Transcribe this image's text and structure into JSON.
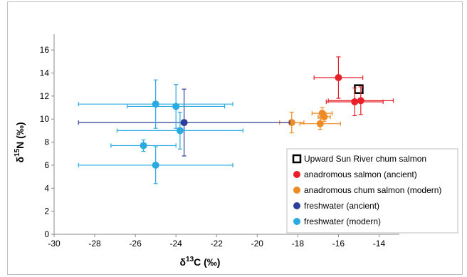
{
  "chart_data": {
    "type": "scatter",
    "xlabel": "δ13C (‰)",
    "ylabel": "δ15N (‰)",
    "xlim": [
      -30,
      -13
    ],
    "ylim": [
      0,
      17
    ],
    "xticks": [
      -30,
      -28,
      -26,
      -24,
      -22,
      -20,
      -18,
      -16,
      -14
    ],
    "yticks": [
      0,
      2,
      4,
      6,
      8,
      10,
      12,
      14,
      16
    ],
    "grid": false,
    "legend_position": "lower-right",
    "series": [
      {
        "name": "Upward Sun River chum salmon",
        "color": "#000000",
        "marker": "open-square",
        "points": [
          {
            "x": -15.0,
            "y": 12.6
          }
        ]
      },
      {
        "name": "anadromous salmon (ancient)",
        "color": "#e8202a",
        "marker": "circle",
        "points": [
          {
            "x": -16.0,
            "y": 13.6,
            "xerr": 1.2,
            "yerr": 1.8
          },
          {
            "x": -15.2,
            "y": 11.5,
            "xerr": 1.4,
            "yerr": 1.2
          },
          {
            "x": -14.9,
            "y": 11.6,
            "xerr": 1.6,
            "yerr": 1.2
          }
        ]
      },
      {
        "name": "anadromous chum salmon (modern)",
        "color": "#f08a24",
        "marker": "circle",
        "points": [
          {
            "x": -18.3,
            "y": 9.7,
            "xerr": 0.6,
            "yerr": 0.9
          },
          {
            "x": -16.8,
            "y": 10.5,
            "xerr": 0.5,
            "yerr": 0.5
          },
          {
            "x": -16.7,
            "y": 10.2,
            "xerr": 0.3,
            "yerr": 0.4
          },
          {
            "x": -16.9,
            "y": 9.6,
            "xerr": 1.0,
            "yerr": 0.5
          }
        ]
      },
      {
        "name": "freshwater (ancient)",
        "color": "#2e3f99",
        "marker": "circle",
        "points": [
          {
            "x": -23.6,
            "y": 9.7,
            "xerr": 5.2,
            "yerr": 2.9
          }
        ]
      },
      {
        "name": "freshwater (modern)",
        "color": "#29abe2",
        "marker": "circle",
        "points": [
          {
            "x": -25.0,
            "y": 11.3,
            "xerr": 3.8,
            "yerr": 2.1
          },
          {
            "x": -24.0,
            "y": 11.1,
            "xerr": 2.4,
            "yerr": 1.9
          },
          {
            "x": -23.8,
            "y": 9.0,
            "xerr": 3.1,
            "yerr": 1.6
          },
          {
            "x": -25.6,
            "y": 7.7,
            "xerr": 1.6,
            "yerr": 0.5
          },
          {
            "x": -25.0,
            "y": 6.0,
            "xerr": 3.8,
            "yerr": 1.6
          }
        ]
      }
    ]
  }
}
